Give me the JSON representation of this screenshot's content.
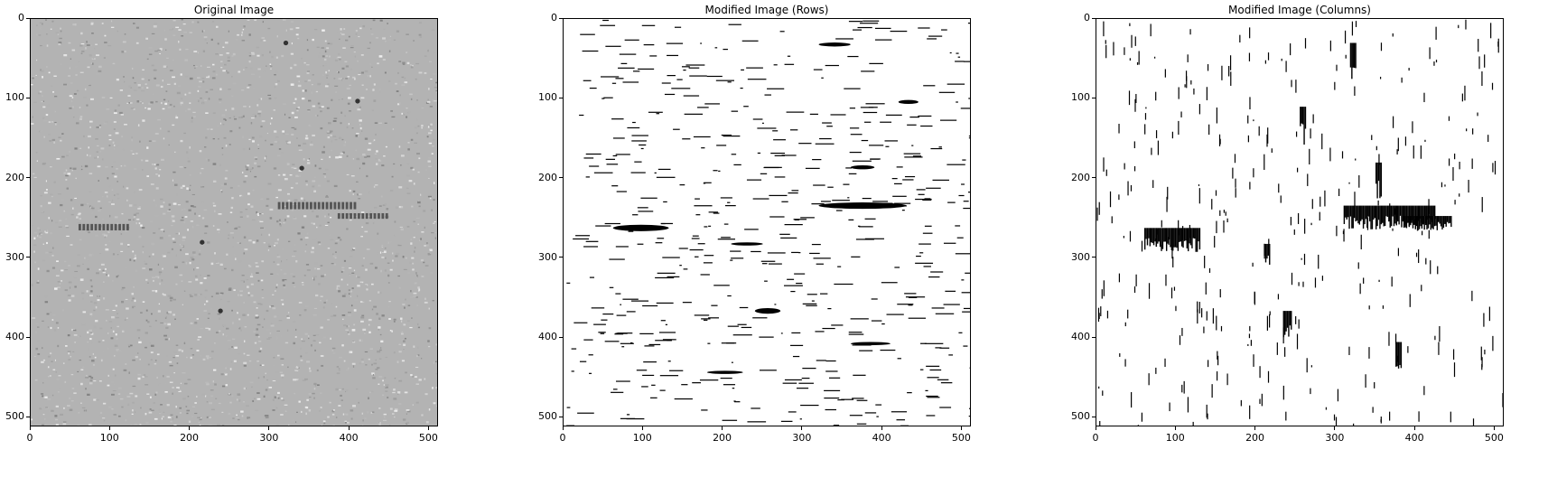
{
  "panels": [
    {
      "title": "Original Image",
      "kind": "gray"
    },
    {
      "title": "Modified Image (Rows)",
      "kind": "rows"
    },
    {
      "title": "Modified Image (Columns)",
      "kind": "cols"
    }
  ],
  "chart_data": [
    {
      "type": "heatmap",
      "title": "Original Image",
      "xlim": [
        0,
        512
      ],
      "ylim": [
        512,
        0
      ],
      "x_ticks": [
        0,
        100,
        200,
        300,
        400,
        500
      ],
      "y_ticks": [
        0,
        100,
        200,
        300,
        400,
        500
      ]
    },
    {
      "type": "heatmap",
      "title": "Modified Image (Rows)",
      "xlim": [
        0,
        512
      ],
      "ylim": [
        512,
        0
      ],
      "x_ticks": [
        0,
        100,
        200,
        300,
        400,
        500
      ],
      "y_ticks": [
        0,
        100,
        200,
        300,
        400,
        500
      ]
    },
    {
      "type": "heatmap",
      "title": "Modified Image (Columns)",
      "xlim": [
        0,
        512
      ],
      "ylim": [
        512,
        0
      ],
      "x_ticks": [
        0,
        100,
        200,
        300,
        400,
        500
      ],
      "y_ticks": [
        0,
        100,
        200,
        300,
        400,
        500
      ]
    }
  ],
  "colors": {
    "gray_background": "#b3b3b3",
    "defect": "#000000",
    "foreground": "#ffffff"
  },
  "tick_labels": [
    "0",
    "100",
    "200",
    "300",
    "400",
    "500"
  ]
}
